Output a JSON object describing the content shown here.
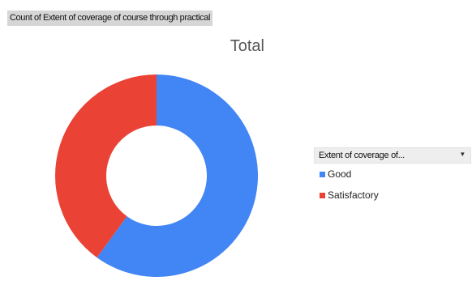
{
  "field_button": {
    "label": "Count of Extent of coverage of course through practical"
  },
  "legend_filter": {
    "label": "Extent of coverage of...",
    "dropdown_icon": "triangle-down"
  },
  "colors": {
    "Good": "#4285f4",
    "Satisfactory": "#ea4335"
  },
  "chart_data": {
    "type": "pie",
    "subtype": "donut",
    "title": "Total",
    "legend_position": "right",
    "categories": [
      "Good",
      "Satisfactory"
    ],
    "values": [
      60,
      40
    ],
    "series": [
      {
        "name": "Total",
        "values": [
          60,
          40
        ]
      }
    ]
  }
}
